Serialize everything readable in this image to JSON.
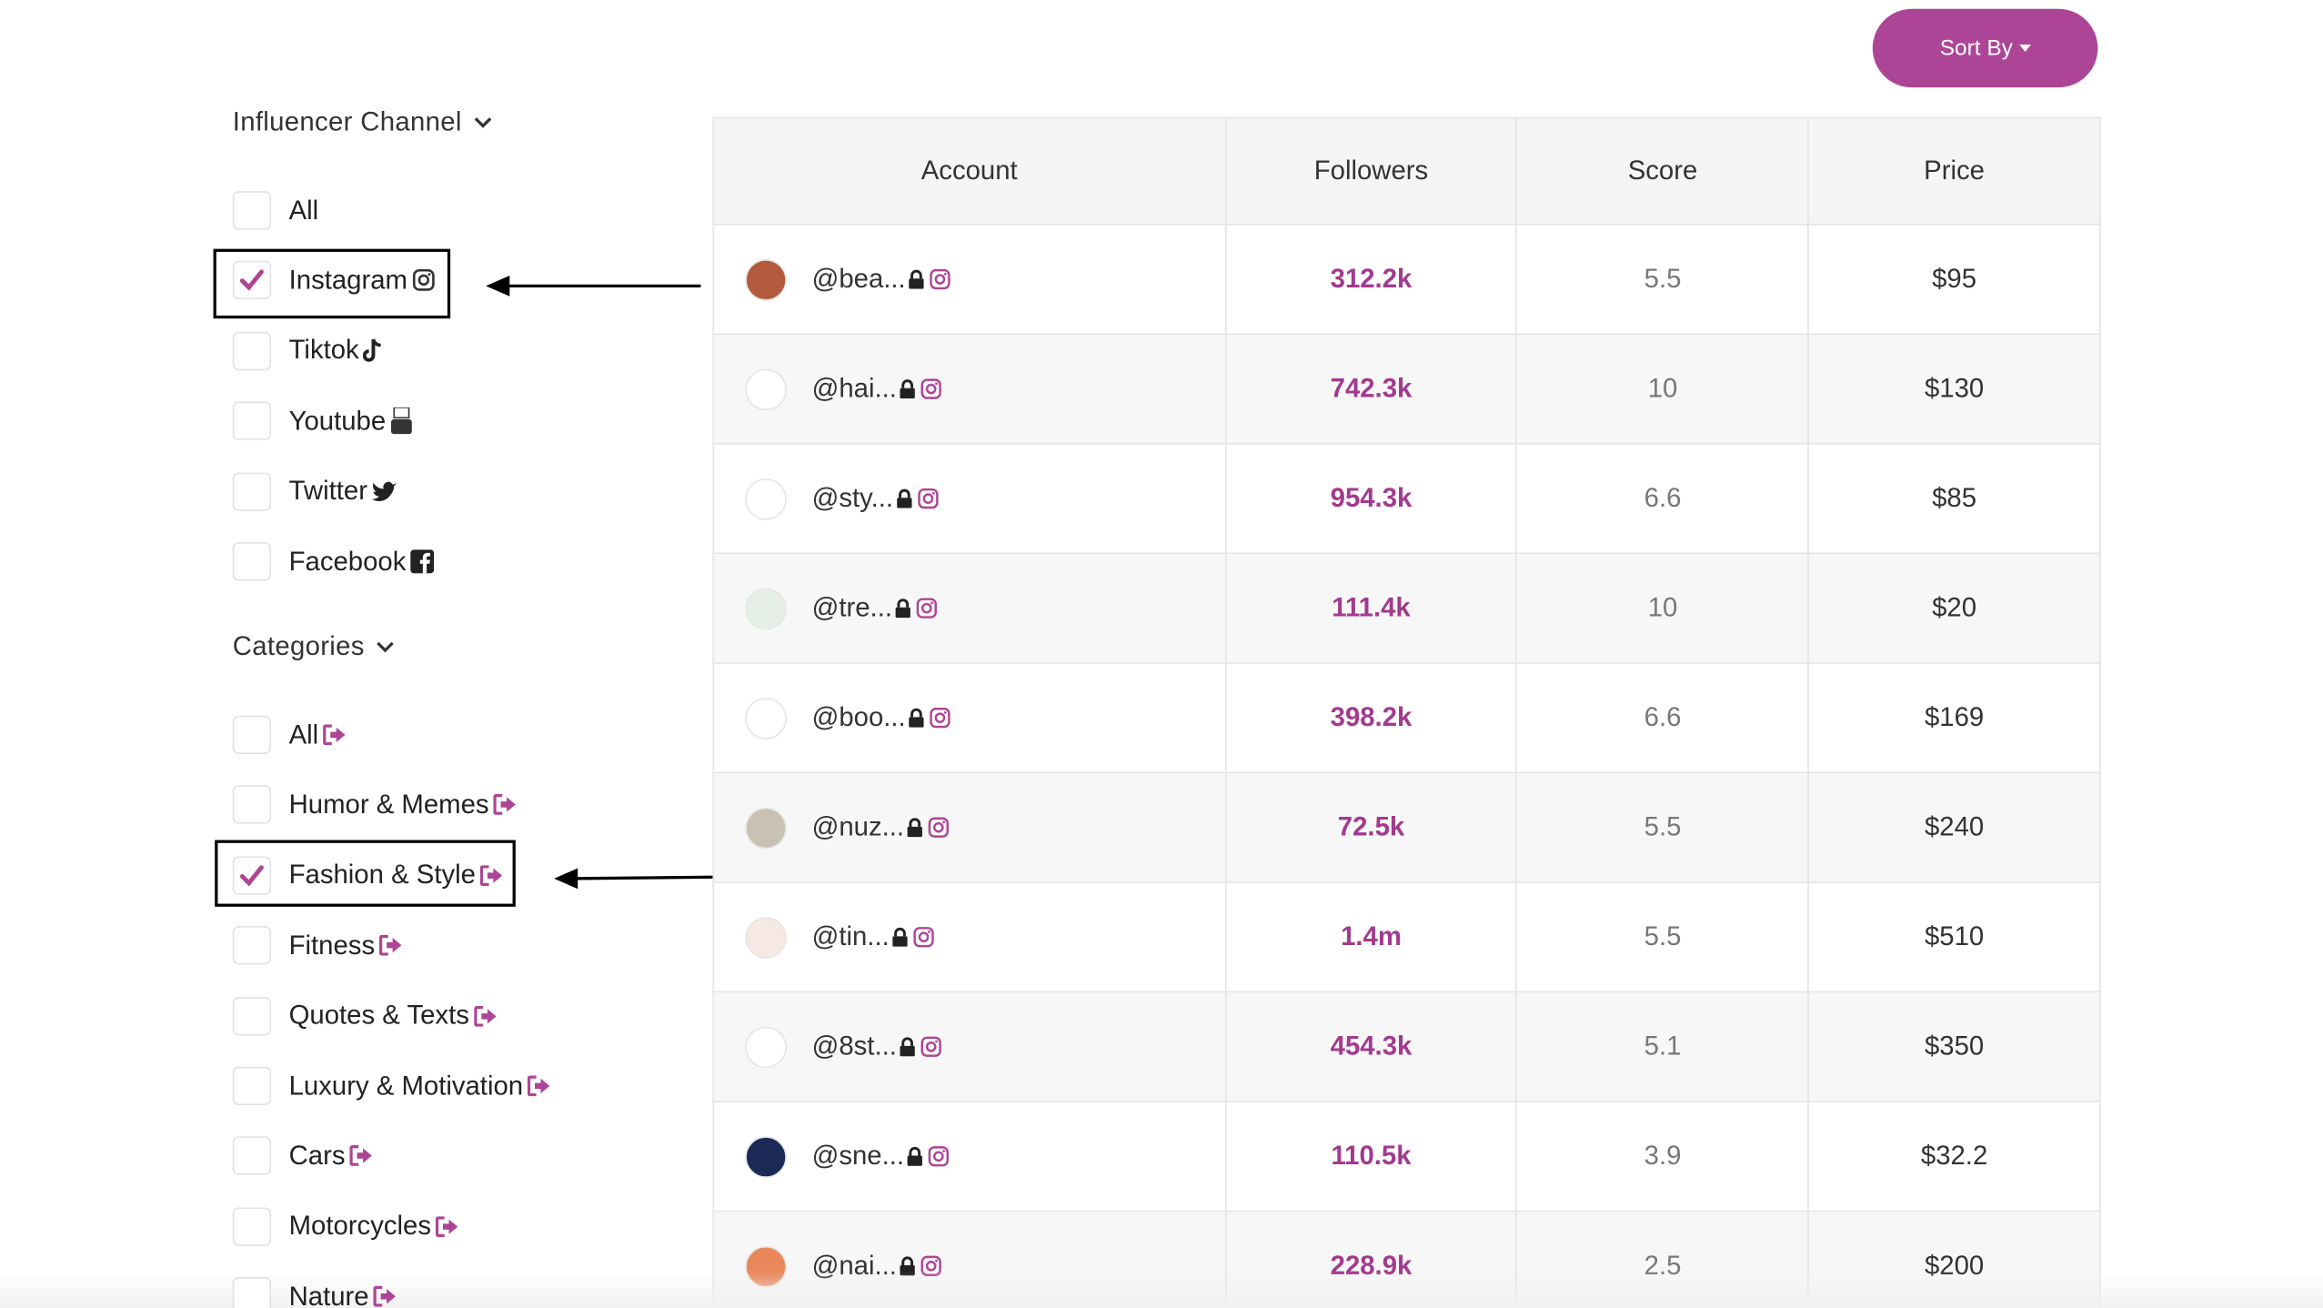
{
  "sort_button": "Sort By",
  "filters": {
    "channel": {
      "title": "Influencer Channel",
      "options": [
        {
          "label": "All",
          "checked": false
        },
        {
          "label": "Instagram",
          "checked": true
        },
        {
          "label": "Tiktok",
          "checked": false
        },
        {
          "label": "Youtube",
          "checked": false
        },
        {
          "label": "Twitter",
          "checked": false
        },
        {
          "label": "Facebook",
          "checked": false
        }
      ]
    },
    "categories": {
      "title": "Categories",
      "options": [
        {
          "label": "All",
          "checked": false
        },
        {
          "label": "Humor & Memes",
          "checked": false
        },
        {
          "label": "Fashion & Style",
          "checked": true
        },
        {
          "label": "Fitness",
          "checked": false
        },
        {
          "label": "Quotes & Texts",
          "checked": false
        },
        {
          "label": "Luxury & Motivation",
          "checked": false
        },
        {
          "label": "Cars",
          "checked": false
        },
        {
          "label": "Motorcycles",
          "checked": false
        },
        {
          "label": "Nature",
          "checked": false
        }
      ]
    }
  },
  "table": {
    "columns": [
      "Account",
      "Followers",
      "Score",
      "Price"
    ],
    "rows": [
      [
        "@bea...",
        "312.2k",
        "5.5",
        "$95"
      ],
      [
        "@hai...",
        "742.3k",
        "10",
        "$130"
      ],
      [
        "@sty...",
        "954.3k",
        "6.6",
        "$85"
      ],
      [
        "@tre...",
        "111.4k",
        "10",
        "$20"
      ],
      [
        "@boo...",
        "398.2k",
        "6.6",
        "$169"
      ],
      [
        "@nuz...",
        "72.5k",
        "5.5",
        "$240"
      ],
      [
        "@tin...",
        "1.4m",
        "5.5",
        "$510"
      ],
      [
        "@8st...",
        "454.3k",
        "5.1",
        "$350"
      ],
      [
        "@sne...",
        "110.5k",
        "3.9",
        "$32.2"
      ],
      [
        "@nai...",
        "228.9k",
        "2.5",
        "$200"
      ]
    ]
  }
}
